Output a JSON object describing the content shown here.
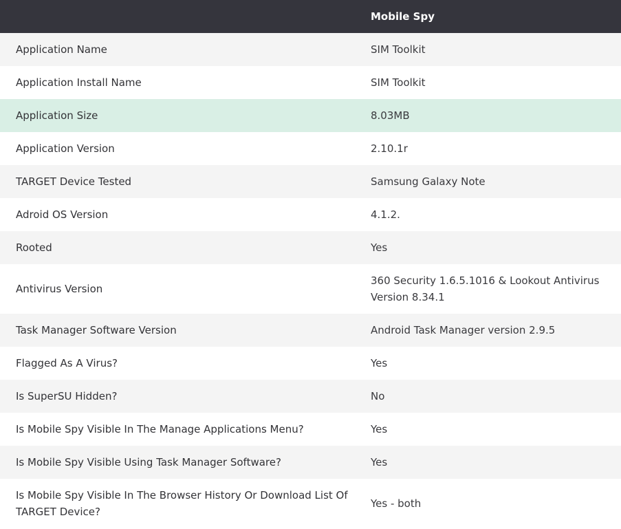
{
  "header": {
    "col_label": "",
    "col_product": "Mobile Spy"
  },
  "rows": [
    {
      "label": "Application Name",
      "value": "SIM Toolkit"
    },
    {
      "label": "Application Install Name",
      "value": "SIM Toolkit"
    },
    {
      "label": "Application Size",
      "value": "8.03MB"
    },
    {
      "label": "Application Version",
      "value": "2.10.1r"
    },
    {
      "label": "TARGET Device Tested",
      "value": "Samsung Galaxy Note"
    },
    {
      "label": "Adroid OS Version",
      "value": "4.1.2."
    },
    {
      "label": "Rooted",
      "value": "Yes"
    },
    {
      "label": "Antivirus Version",
      "value": "360 Security 1.6.5.1016 & Lookout Antivirus Version 8.34.1"
    },
    {
      "label": "Task Manager Software Version",
      "value": "Android Task Manager version 2.9.5"
    },
    {
      "label": "Flagged As A Virus?",
      "value": "Yes"
    },
    {
      "label": "Is SuperSU Hidden?",
      "value": "No"
    },
    {
      "label": "Is Mobile Spy Visible In The Manage Applications Menu?",
      "value": "Yes"
    },
    {
      "label": "Is Mobile Spy Visible Using Task Manager Software?",
      "value": "Yes"
    },
    {
      "label": "Is Mobile Spy Visible In The Browser History Or Download List Of TARGET Device?",
      "value": "Yes - both"
    }
  ],
  "colors": {
    "header_bg": "#35353d",
    "alt_row_bg": "#f4f4f4",
    "highlight_row_bg": "#d9efe5"
  }
}
